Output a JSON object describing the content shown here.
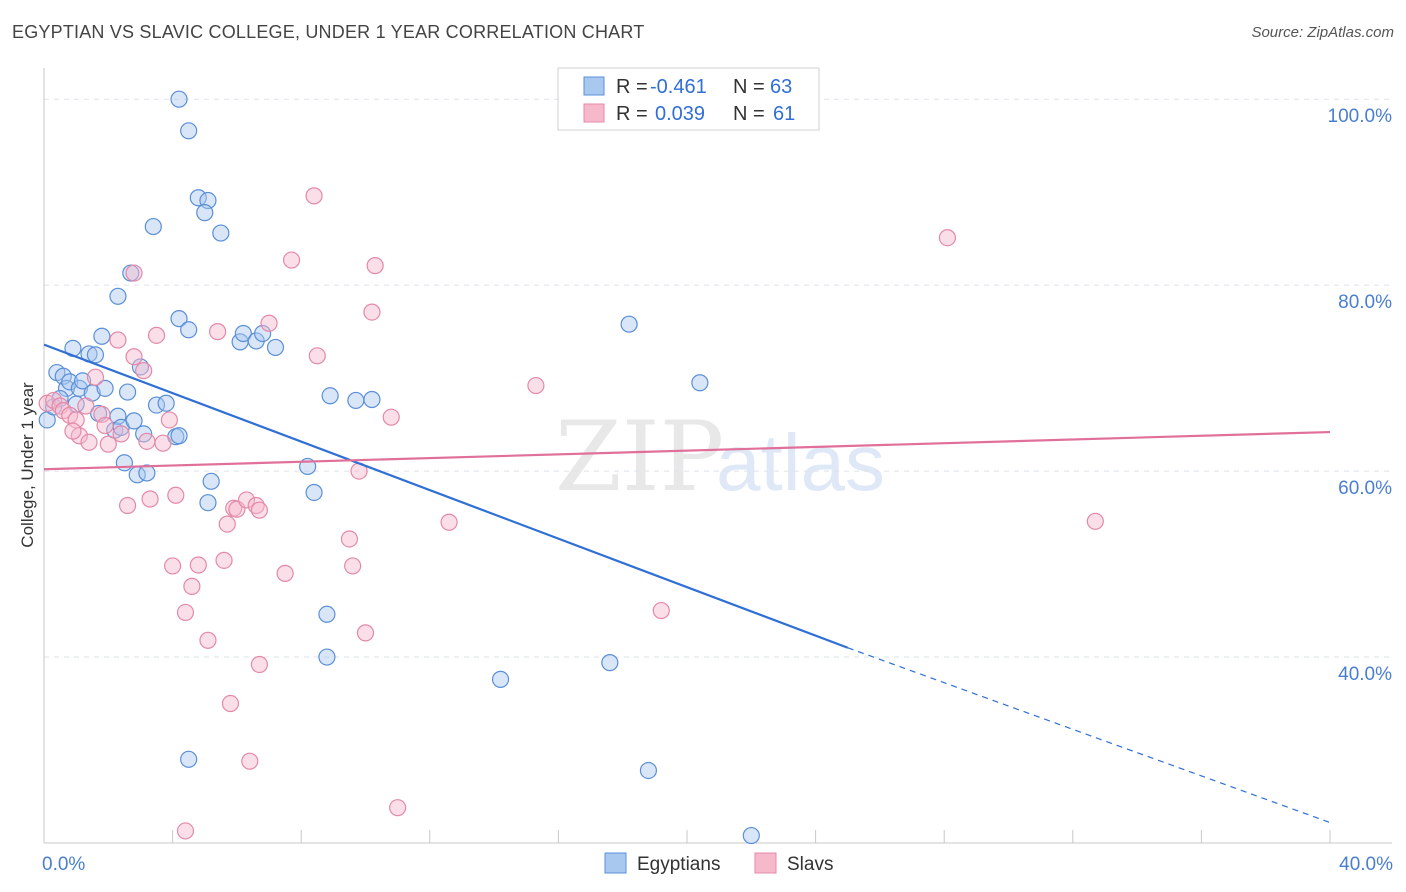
{
  "title": "EGYPTIAN VS SLAVIC COLLEGE, UNDER 1 YEAR CORRELATION CHART",
  "source": "Source: ZipAtlas.com",
  "watermark": {
    "zip": "ZIP",
    "atlas": "atlas"
  },
  "colors": {
    "egyptians_fill": "#a9c8f0",
    "egyptians_stroke": "#5b8fd8",
    "egyptians_line": "#2f6fd6",
    "slavs_fill": "#f6b9cc",
    "slavs_stroke": "#e489a8",
    "slavs_line": "#e0709a",
    "tick_text": "#4a7fd0",
    "grid": "#dde3ea"
  },
  "legend": {
    "rows": [
      {
        "r_label": "R =",
        "r_value": "-0.461",
        "n_label": "N =",
        "n_value": "63"
      },
      {
        "r_label": "R =",
        "r_value": "0.039",
        "n_label": "N =",
        "n_value": "61"
      }
    ]
  },
  "chart_data": {
    "type": "scatter",
    "title": "EGYPTIAN VS SLAVIC COLLEGE, UNDER 1 YEAR CORRELATION CHART",
    "xlabel": "",
    "ylabel": "College, Under 1 year",
    "xlim": [
      0,
      40
    ],
    "ylim": [
      20,
      104
    ],
    "x_tick_labels": [
      "0.0%",
      "40.0%"
    ],
    "x_ticks": [
      0,
      40
    ],
    "y_tick_labels": [
      "40.0%",
      "60.0%",
      "80.0%",
      "100.0%"
    ],
    "y_ticks": [
      40,
      60,
      80,
      100
    ],
    "grid": true,
    "legend_placement": "top-center",
    "series": [
      {
        "name": "Egyptians",
        "r": -0.461,
        "n": 63,
        "trend": {
          "x0": 0,
          "y0": 73.6,
          "x1": 25,
          "y1": 41.0,
          "dashed_to": 40,
          "dashed_y": 22.2
        },
        "points": [
          [
            0.1,
            65.5
          ],
          [
            0.3,
            66.9
          ],
          [
            0.4,
            70.6
          ],
          [
            0.6,
            70.2
          ],
          [
            0.7,
            68.9
          ],
          [
            0.8,
            69.6
          ],
          [
            0.9,
            73.2
          ],
          [
            1.1,
            68.9
          ],
          [
            1.2,
            69.7
          ],
          [
            1.4,
            72.6
          ],
          [
            1.5,
            68.4
          ],
          [
            1.6,
            72.5
          ],
          [
            1.7,
            66.2
          ],
          [
            1.8,
            74.5
          ],
          [
            1.9,
            68.9
          ],
          [
            2.2,
            64.4
          ],
          [
            2.3,
            65.9
          ],
          [
            2.4,
            64.7
          ],
          [
            2.5,
            60.9
          ],
          [
            2.6,
            68.5
          ],
          [
            2.8,
            65.4
          ],
          [
            2.9,
            59.6
          ],
          [
            3.0,
            71.2
          ],
          [
            3.1,
            64.0
          ],
          [
            3.2,
            59.8
          ],
          [
            3.5,
            67.1
          ],
          [
            3.8,
            67.3
          ],
          [
            4.1,
            63.7
          ],
          [
            4.2,
            63.8
          ],
          [
            2.3,
            78.8
          ],
          [
            2.7,
            81.3
          ],
          [
            3.4,
            86.3
          ],
          [
            4.2,
            100.0
          ],
          [
            4.5,
            96.6
          ],
          [
            4.8,
            89.4
          ],
          [
            5.1,
            89.1
          ],
          [
            5.0,
            87.8
          ],
          [
            5.5,
            85.6
          ],
          [
            4.2,
            76.4
          ],
          [
            4.5,
            75.2
          ],
          [
            6.1,
            73.9
          ],
          [
            6.2,
            74.8
          ],
          [
            6.6,
            74.0
          ],
          [
            6.8,
            74.8
          ],
          [
            7.2,
            73.3
          ],
          [
            5.1,
            56.6
          ],
          [
            5.2,
            58.9
          ],
          [
            8.2,
            60.5
          ],
          [
            8.4,
            57.7
          ],
          [
            8.9,
            68.1
          ],
          [
            9.7,
            67.6
          ],
          [
            10.2,
            67.7
          ],
          [
            8.8,
            44.6
          ],
          [
            8.8,
            40.0
          ],
          [
            14.2,
            37.6
          ],
          [
            17.6,
            39.4
          ],
          [
            18.2,
            75.8
          ],
          [
            20.4,
            69.5
          ],
          [
            4.5,
            29.0
          ],
          [
            18.8,
            27.8
          ],
          [
            22.0,
            20.8
          ],
          [
            0.5,
            67.8
          ],
          [
            1.0,
            67.2
          ]
        ]
      },
      {
        "name": "Slavs",
        "r": 0.039,
        "n": 61,
        "trend": {
          "x0": 0,
          "y0": 60.2,
          "x1": 40,
          "y1": 64.2
        },
        "points": [
          [
            0.1,
            67.3
          ],
          [
            0.3,
            67.6
          ],
          [
            0.5,
            67.0
          ],
          [
            0.6,
            66.5
          ],
          [
            0.8,
            66.0
          ],
          [
            1.0,
            65.5
          ],
          [
            1.1,
            63.8
          ],
          [
            1.3,
            67.0
          ],
          [
            1.4,
            63.1
          ],
          [
            1.6,
            70.1
          ],
          [
            1.8,
            66.1
          ],
          [
            1.9,
            64.9
          ],
          [
            2.0,
            62.9
          ],
          [
            2.3,
            74.1
          ],
          [
            2.6,
            56.3
          ],
          [
            2.8,
            81.3
          ],
          [
            2.8,
            72.3
          ],
          [
            3.1,
            70.8
          ],
          [
            3.2,
            63.2
          ],
          [
            3.3,
            57.0
          ],
          [
            3.5,
            74.6
          ],
          [
            3.7,
            63.0
          ],
          [
            3.9,
            65.5
          ],
          [
            4.0,
            49.8
          ],
          [
            4.1,
            57.4
          ],
          [
            4.4,
            44.8
          ],
          [
            4.6,
            47.6
          ],
          [
            4.8,
            49.9
          ],
          [
            5.1,
            41.8
          ],
          [
            5.4,
            75.0
          ],
          [
            5.6,
            50.4
          ],
          [
            5.7,
            54.3
          ],
          [
            5.9,
            56.0
          ],
          [
            6.0,
            55.9
          ],
          [
            6.3,
            56.9
          ],
          [
            6.6,
            56.3
          ],
          [
            6.7,
            39.2
          ],
          [
            6.7,
            55.8
          ],
          [
            7.0,
            75.9
          ],
          [
            7.5,
            49.0
          ],
          [
            7.7,
            82.7
          ],
          [
            8.4,
            89.6
          ],
          [
            8.5,
            72.4
          ],
          [
            9.5,
            52.7
          ],
          [
            9.6,
            49.8
          ],
          [
            9.8,
            60.0
          ],
          [
            10.0,
            42.6
          ],
          [
            10.2,
            77.1
          ],
          [
            10.3,
            82.1
          ],
          [
            10.8,
            65.8
          ],
          [
            11.0,
            23.8
          ],
          [
            12.6,
            54.5
          ],
          [
            15.3,
            69.2
          ],
          [
            19.2,
            45.0
          ],
          [
            28.1,
            85.1
          ],
          [
            32.7,
            54.6
          ],
          [
            5.8,
            35.0
          ],
          [
            6.4,
            28.8
          ],
          [
            4.4,
            21.3
          ],
          [
            2.4,
            64.0
          ],
          [
            0.9,
            64.3
          ]
        ]
      }
    ]
  },
  "bottom_legend": [
    "Egyptians",
    "Slavs"
  ]
}
